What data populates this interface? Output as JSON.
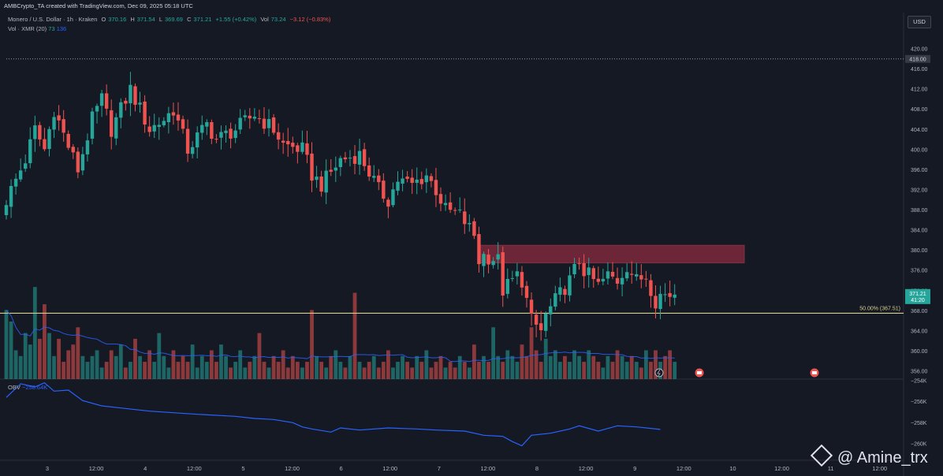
{
  "header": {
    "credit": "AMBCrypto_TA created with TradingView.com, Dec 09, 2025 05:18 UTC",
    "symbol": "Monero / U.S. Dollar · 1h · Kraken",
    "o_label": "O",
    "o_value": "370.16",
    "h_label": "H",
    "h_value": "371.54",
    "l_label": "L",
    "l_value": "369.69",
    "c_label": "C",
    "c_value": "371.21",
    "change": "+1.55 (+0.42%)",
    "vol_label": "Vol",
    "vol_value": "73.24",
    "vol_change": "−3.12 (−0.83%)",
    "vol_indicator": "Vol · XMR (20)",
    "vol_val1": "73",
    "vol_val2": "136",
    "currency": "USD"
  },
  "obv": {
    "label": "OBV",
    "value": "−258.64K",
    "axis_labels": [
      "−254K",
      "−256K",
      "−258K",
      "−260K"
    ]
  },
  "price_labels": {
    "current_price": "371.21",
    "countdown": "41:20",
    "level_418": "418.00",
    "fib_label": "50.00% (367.51)"
  },
  "watermark": "@ Amine_trx",
  "colors": {
    "background": "#151924",
    "up": "#26a69a",
    "down": "#ef5350",
    "fib_line": "#d6cf8f",
    "zone": "#8b2b3e",
    "obv_line": "#2962ff"
  },
  "chart_data": {
    "type": "candlestick",
    "symbol": "Monero / U.S. Dollar",
    "interval": "1h",
    "exchange": "Kraken",
    "y_ticks": [
      356,
      360,
      364,
      368,
      372,
      376,
      380,
      384,
      388,
      392,
      396,
      400,
      404,
      408,
      412,
      416,
      420
    ],
    "x_ticks": [
      "3",
      "12:00",
      "4",
      "12:00",
      "5",
      "12:00",
      "6",
      "12:00",
      "7",
      "12:00",
      "8",
      "12:00",
      "9",
      "12:00",
      "10",
      "12:00",
      "11",
      "12:00"
    ],
    "ylim": [
      354,
      424
    ],
    "resistance_zone": [
      377.5,
      381
    ],
    "horizontal_level": 418,
    "fib_50": 367.51,
    "close_path": [
      [
        0,
        390
      ],
      [
        4,
        398
      ],
      [
        6,
        404
      ],
      [
        8,
        400
      ],
      [
        10,
        408
      ],
      [
        12,
        403
      ],
      [
        15,
        396
      ],
      [
        18,
        406
      ],
      [
        20,
        410
      ],
      [
        22,
        404
      ],
      [
        26,
        412
      ],
      [
        30,
        404
      ],
      [
        33,
        406
      ],
      [
        35,
        408
      ],
      [
        38,
        400
      ],
      [
        42,
        405
      ],
      [
        44,
        402
      ],
      [
        48,
        404
      ],
      [
        52,
        407
      ],
      [
        56,
        404
      ],
      [
        58,
        401
      ],
      [
        62,
        400
      ],
      [
        64,
        395
      ],
      [
        66,
        393
      ],
      [
        70,
        398
      ],
      [
        74,
        399
      ],
      [
        78,
        392
      ],
      [
        80,
        390
      ],
      [
        82,
        394
      ],
      [
        85,
        393
      ],
      [
        88,
        395
      ],
      [
        90,
        392
      ],
      [
        92,
        388
      ],
      [
        95,
        387
      ],
      [
        98,
        383
      ],
      [
        99,
        378
      ],
      [
        100,
        379
      ],
      [
        103,
        378
      ],
      [
        104,
        372
      ],
      [
        107,
        375
      ],
      [
        108,
        374
      ],
      [
        110,
        366
      ],
      [
        112,
        364
      ],
      [
        113,
        367
      ],
      [
        115,
        370
      ],
      [
        118,
        374
      ],
      [
        120,
        378
      ],
      [
        121,
        376
      ],
      [
        124,
        373
      ],
      [
        126,
        375
      ],
      [
        128,
        374
      ],
      [
        130,
        377
      ],
      [
        132,
        374
      ],
      [
        134,
        375
      ],
      [
        136,
        370
      ],
      [
        137,
        371.21
      ]
    ],
    "volume": [
      12,
      10,
      5,
      4,
      8,
      6,
      16,
      7,
      13,
      8,
      4,
      7,
      3,
      5,
      6,
      9,
      4,
      3,
      4,
      5,
      2,
      3,
      5,
      4,
      6,
      2,
      3,
      7,
      4,
      3,
      5,
      3,
      8,
      4,
      2,
      5,
      3,
      4,
      3,
      6,
      2,
      4,
      3,
      5,
      3,
      6,
      4,
      2,
      3,
      5,
      2,
      3,
      4,
      8,
      3,
      2,
      4,
      3,
      5,
      2,
      4,
      3,
      2,
      3,
      12,
      4,
      3,
      2,
      4,
      5,
      3,
      2,
      4,
      15,
      3,
      2,
      3,
      4,
      2,
      3,
      5,
      2,
      3,
      4,
      3,
      2,
      4,
      3,
      5,
      2,
      3,
      4,
      2,
      3,
      2,
      4,
      3,
      2,
      6,
      3,
      4,
      3,
      9,
      4,
      3,
      5,
      4,
      3,
      6,
      4,
      9,
      5,
      3,
      7,
      4,
      5,
      3,
      4,
      3,
      5,
      4,
      3,
      5,
      4,
      3,
      2,
      4,
      3,
      5,
      4,
      3,
      4,
      3,
      2,
      5,
      3,
      5,
      3,
      4,
      5,
      3
    ],
    "obv": [
      [
        0,
        -255.6
      ],
      [
        3,
        -254.3
      ],
      [
        6,
        -254.6
      ],
      [
        8,
        -254.2
      ],
      [
        10,
        -255.0
      ],
      [
        13,
        -254.9
      ],
      [
        16,
        -255.9
      ],
      [
        20,
        -256.4
      ],
      [
        24,
        -256.6
      ],
      [
        30,
        -256.9
      ],
      [
        40,
        -257.2
      ],
      [
        48,
        -257.4
      ],
      [
        52,
        -257.6
      ],
      [
        56,
        -257.7
      ],
      [
        60,
        -258.0
      ],
      [
        62,
        -258.4
      ],
      [
        64,
        -258.6
      ],
      [
        68,
        -258.9
      ],
      [
        70,
        -258.5
      ],
      [
        74,
        -258.7
      ],
      [
        80,
        -258.5
      ],
      [
        86,
        -258.6
      ],
      [
        90,
        -258.7
      ],
      [
        96,
        -258.8
      ],
      [
        100,
        -259.2
      ],
      [
        104,
        -259.3
      ],
      [
        106,
        -259.8
      ],
      [
        108,
        -260.2
      ],
      [
        110,
        -259.2
      ],
      [
        114,
        -259.0
      ],
      [
        118,
        -258.6
      ],
      [
        120,
        -258.3
      ],
      [
        124,
        -258.8
      ],
      [
        128,
        -258.3
      ],
      [
        132,
        -258.4
      ],
      [
        137,
        -258.64
      ]
    ]
  }
}
